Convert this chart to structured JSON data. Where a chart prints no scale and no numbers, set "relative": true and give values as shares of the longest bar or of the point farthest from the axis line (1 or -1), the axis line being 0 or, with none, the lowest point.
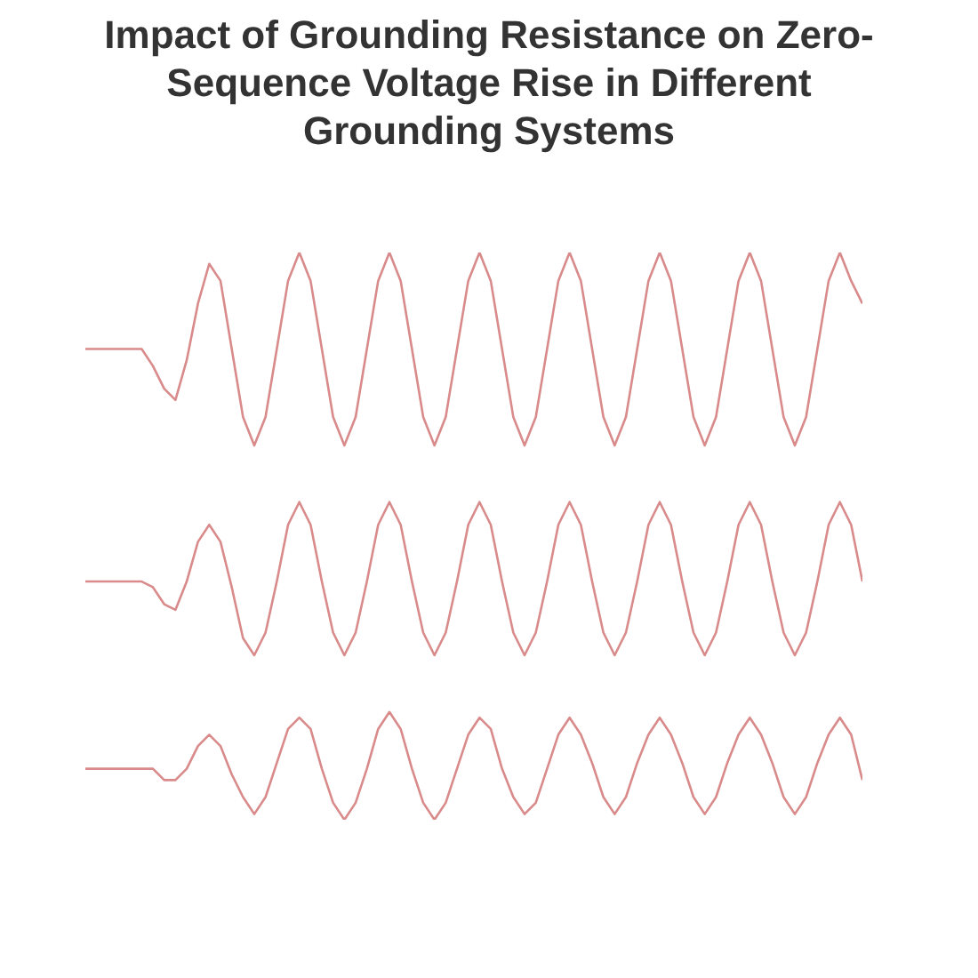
{
  "chart_data": {
    "type": "line",
    "title": "Impact of Grounding Resistance on Zero-Sequence Voltage Rise in Different Grounding Systems",
    "relative": true,
    "categories": [
      null,
      null,
      null,
      null,
      null,
      null,
      null,
      null,
      null,
      null,
      null,
      null,
      null,
      null,
      null,
      null,
      null,
      null,
      null,
      null,
      null,
      null,
      null,
      null,
      null,
      null,
      null,
      null,
      null,
      null,
      null,
      null,
      null,
      null,
      null,
      null,
      null,
      null,
      null,
      null,
      null,
      null,
      null,
      null,
      null,
      null,
      null,
      null,
      null,
      null,
      null,
      null,
      null,
      null,
      null,
      null,
      null,
      null,
      null,
      null,
      null,
      null,
      null,
      null,
      null,
      null,
      null,
      null,
      null,
      null
    ],
    "series": [
      {
        "color": "#d98a8a",
        "values": [
          0.83,
          0.83,
          0.83,
          0.83,
          0.83,
          0.83,
          0.8,
          0.76,
          0.74,
          0.81,
          0.91,
          0.98,
          0.95,
          0.83,
          0.71,
          0.66,
          0.71,
          0.83,
          0.95,
          1,
          0.95,
          0.83,
          0.71,
          0.66,
          0.71,
          0.83,
          0.95,
          1,
          0.95,
          0.83,
          0.71,
          0.66,
          0.71,
          0.83,
          0.95,
          1,
          0.95,
          0.83,
          0.71,
          0.66,
          0.71,
          0.83,
          0.95,
          1,
          0.95,
          0.83,
          0.71,
          0.66,
          0.71,
          0.83,
          0.95,
          1,
          0.95,
          0.83,
          0.71,
          0.66,
          0.71,
          0.83,
          0.95,
          1,
          0.95,
          0.83,
          0.71,
          0.66,
          0.71,
          0.83,
          0.95,
          1,
          0.95,
          0.91
        ]
      },
      {
        "color": "#d98a8a",
        "values": [
          0.42,
          0.42,
          0.42,
          0.42,
          0.42,
          0.42,
          0.41,
          0.38,
          0.37,
          0.42,
          0.49,
          0.52,
          0.49,
          0.41,
          0.32,
          0.29,
          0.33,
          0.42,
          0.52,
          0.56,
          0.52,
          0.42,
          0.33,
          0.29,
          0.33,
          0.42,
          0.52,
          0.56,
          0.52,
          0.42,
          0.33,
          0.29,
          0.33,
          0.42,
          0.52,
          0.56,
          0.52,
          0.42,
          0.33,
          0.29,
          0.33,
          0.42,
          0.52,
          0.56,
          0.52,
          0.42,
          0.33,
          0.29,
          0.33,
          0.42,
          0.52,
          0.56,
          0.52,
          0.42,
          0.33,
          0.29,
          0.33,
          0.42,
          0.52,
          0.56,
          0.52,
          0.42,
          0.33,
          0.29,
          0.33,
          0.42,
          0.52,
          0.56,
          0.52,
          0.42
        ]
      },
      {
        "color": "#d98a8a",
        "values": [
          0.09,
          0.09,
          0.09,
          0.09,
          0.09,
          0.09,
          0.09,
          0.07,
          0.07,
          0.09,
          0.13,
          0.15,
          0.13,
          0.08,
          0.04,
          0.01,
          0.04,
          0.1,
          0.16,
          0.18,
          0.16,
          0.09,
          0.03,
          0,
          0.03,
          0.09,
          0.16,
          0.19,
          0.16,
          0.09,
          0.03,
          0,
          0.03,
          0.09,
          0.15,
          0.18,
          0.16,
          0.09,
          0.04,
          0.01,
          0.03,
          0.09,
          0.15,
          0.18,
          0.15,
          0.1,
          0.04,
          0.01,
          0.04,
          0.1,
          0.15,
          0.18,
          0.15,
          0.1,
          0.04,
          0.01,
          0.04,
          0.1,
          0.15,
          0.18,
          0.15,
          0.1,
          0.04,
          0.01,
          0.04,
          0.1,
          0.15,
          0.18,
          0.15,
          0.07
        ]
      }
    ]
  }
}
